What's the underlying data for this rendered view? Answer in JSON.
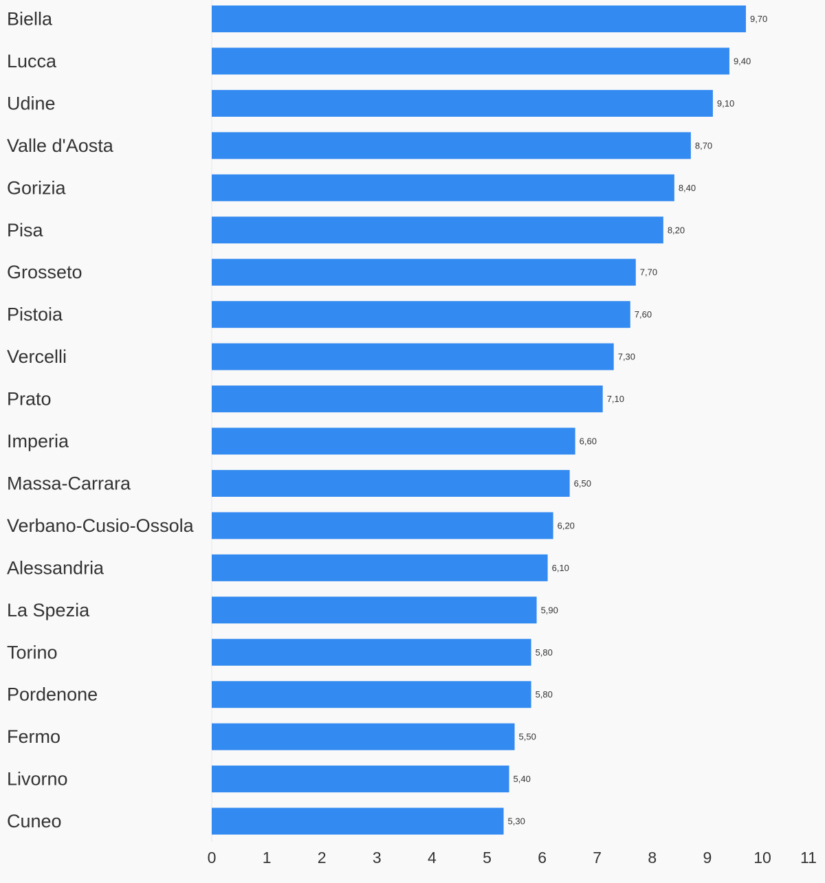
{
  "chart_data": {
    "type": "bar",
    "orientation": "horizontal",
    "categories": [
      "Biella",
      "Lucca",
      "Udine",
      "Valle d'Aosta",
      "Gorizia",
      "Pisa",
      "Grosseto",
      "Pistoia",
      "Vercelli",
      "Prato",
      "Imperia",
      "Massa-Carrara",
      "Verbano-Cusio-Ossola",
      "Alessandria",
      "La Spezia",
      "Torino",
      "Pordenone",
      "Fermo",
      "Livorno",
      "Cuneo"
    ],
    "values": [
      9.7,
      9.4,
      9.1,
      8.7,
      8.4,
      8.2,
      7.7,
      7.6,
      7.3,
      7.1,
      6.6,
      6.5,
      6.2,
      6.1,
      5.9,
      5.8,
      5.8,
      5.5,
      5.4,
      5.3
    ],
    "value_labels": [
      "9,70",
      "9,40",
      "9,10",
      "8,70",
      "8,40",
      "8,20",
      "7,70",
      "7,60",
      "7,30",
      "7,10",
      "6,60",
      "6,50",
      "6,20",
      "6,10",
      "5,90",
      "5,80",
      "5,80",
      "5,50",
      "5,40",
      "5,30"
    ],
    "xlim": [
      0,
      11
    ],
    "x_ticks": [
      "0",
      "1",
      "2",
      "3",
      "4",
      "5",
      "6",
      "7",
      "8",
      "9",
      "10",
      "11"
    ],
    "grid": false,
    "legend": "none",
    "bar_color": "#338af0",
    "background_color": "#f9f9f9",
    "text_color": "#333333",
    "title": "",
    "xlabel": "",
    "ylabel": ""
  }
}
